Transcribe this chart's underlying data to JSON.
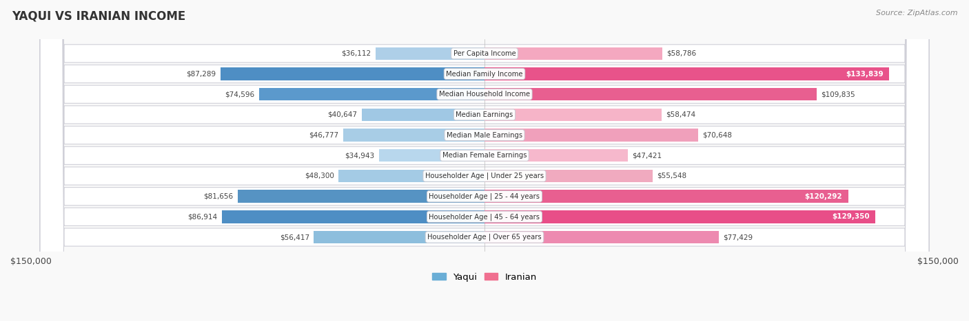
{
  "title": "YAQUI VS IRANIAN INCOME",
  "source": "Source: ZipAtlas.com",
  "categories": [
    "Per Capita Income",
    "Median Family Income",
    "Median Household Income",
    "Median Earnings",
    "Median Male Earnings",
    "Median Female Earnings",
    "Householder Age | Under 25 years",
    "Householder Age | 25 - 44 years",
    "Householder Age | 45 - 64 years",
    "Householder Age | Over 65 years"
  ],
  "yaqui_values": [
    36112,
    87289,
    74596,
    40647,
    46777,
    34943,
    48300,
    81656,
    86914,
    56417
  ],
  "iranian_values": [
    58786,
    133839,
    109835,
    58474,
    70648,
    47421,
    55548,
    120292,
    129350,
    77429
  ],
  "yaqui_colors": [
    "#aecfe8",
    "#4e8ec4",
    "#5b99cc",
    "#a0c8e4",
    "#a8cde6",
    "#b8d7ed",
    "#a4cbe5",
    "#5693c3",
    "#4e8ec4",
    "#8dbedd"
  ],
  "iranian_colors": [
    "#f4a8c0",
    "#e8538a",
    "#e85f90",
    "#f6b4c8",
    "#f0a0bb",
    "#f6b8cc",
    "#f0aabf",
    "#e85f90",
    "#e84e88",
    "#ed8ab0"
  ],
  "max_val": 150000,
  "row_colors": [
    "#f0f0f5",
    "#e8e8f0"
  ],
  "legend_labels": [
    "Yaqui",
    "Iranian"
  ],
  "yaqui_legend_color": "#6aaed6",
  "iranian_legend_color": "#f07090",
  "axis_label_left": "$150,000",
  "axis_label_right": "$150,000"
}
